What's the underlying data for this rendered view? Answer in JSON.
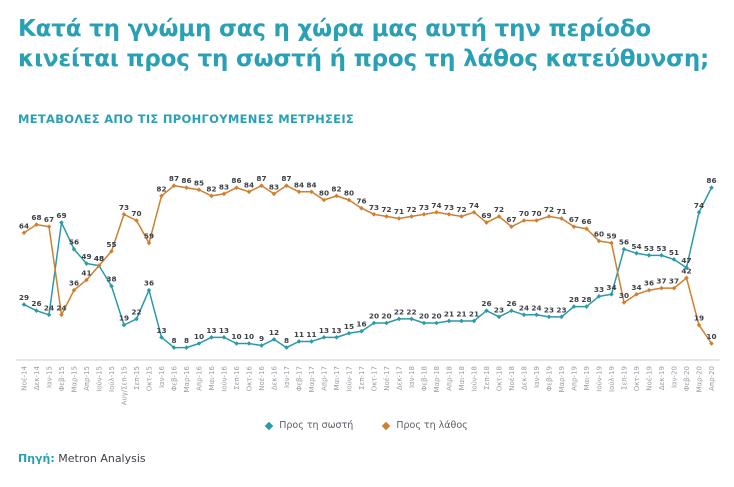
{
  "header": {
    "title_lines": [
      "Κατά τη γνώμη σας η χώρα μας αυτή την περίοδο",
      "κινείται προς τη σωστή ή προς τη λάθος κατεύθυνση;"
    ],
    "subtitle": "ΜΕΤΑΒΟΛΕΣ ΑΠΟ ΤΙΣ ΠΡΟΗΓΟΥΜΕΝΕΣ ΜΕΤΡΗΣΕΙΣ"
  },
  "chart_data": {
    "type": "line",
    "marker": "diamond",
    "grid": false,
    "legend_position": "bottom",
    "ylim": [
      0,
      100
    ],
    "data_label_color": "#3D4148",
    "axis_color": "#C9CCD1",
    "tick_color": "#9A9DA3",
    "categories": [
      "Νοέ-14",
      "Δεκ-14",
      "Ιαν-15",
      "Φεβ-15",
      "Μαρ-15",
      "Απρ-15",
      "Ιούν-15",
      "Ιούλ-15",
      "Αυγ/Σεπ-15",
      "Σεπ-15",
      "Οκτ-15",
      "Ιαν-16",
      "Φεβ-16",
      "Μαρ-16",
      "Απρ-16",
      "Μαι-16",
      "Ιούν-16",
      "Σεπ-16",
      "Οκτ-16",
      "Νοέ-16",
      "Δεκ-16",
      "Ιαν-17",
      "Φεβ-17",
      "Μαρ-17",
      "Απρ-17",
      "Μαι-17",
      "Ιούν-17",
      "Σεπ-17",
      "Οκτ-17",
      "Νοέ-17",
      "Δεκ-17",
      "Ιαν-18",
      "Φεβ-18",
      "Μαρ-18",
      "Απρ-18",
      "Μαι-18",
      "Ιούν-18",
      "Σεπ-18",
      "Οκτ-18",
      "Νοέ-18",
      "Δεκ-18",
      "Ιαν-19",
      "Φεβ-19",
      "Μαρ-19",
      "Απρ-19",
      "Μαι-19",
      "Ιούν-19",
      "Ιούλ-19",
      "Σεπ-19",
      "Οκτ-19",
      "Νοέ-19",
      "Δεκ-19",
      "Ιαν-20",
      "Φεβ-20",
      "Μαρ-20",
      "Απρ-20"
    ],
    "series": [
      {
        "name": "Προς τη σωστή",
        "color": "#2B9AA8",
        "values": [
          29,
          26,
          24,
          69,
          56,
          49,
          48,
          38,
          19,
          22,
          36,
          13,
          8,
          8,
          10,
          13,
          13,
          10,
          10,
          9,
          12,
          8,
          11,
          11,
          13,
          13,
          15,
          16,
          20,
          20,
          22,
          22,
          20,
          20,
          21,
          21,
          21,
          26,
          23,
          26,
          24,
          24,
          23,
          23,
          28,
          28,
          33,
          34,
          56,
          54,
          53,
          53,
          51,
          47,
          74,
          86
        ]
      },
      {
        "name": "Προς τη λάθος",
        "color": "#D07F2E",
        "values": [
          64,
          68,
          67,
          24,
          36,
          41,
          48,
          55,
          73,
          70,
          59,
          82,
          87,
          86,
          85,
          82,
          83,
          86,
          84,
          87,
          83,
          87,
          84,
          84,
          80,
          82,
          80,
          76,
          73,
          72,
          71,
          72,
          73,
          74,
          73,
          72,
          74,
          69,
          72,
          67,
          70,
          70,
          72,
          71,
          67,
          66,
          60,
          59,
          30,
          34,
          36,
          37,
          37,
          42,
          19,
          10
        ]
      }
    ]
  },
  "footer": {
    "source_label": "Πηγή:",
    "source_value": "Metron Analysis"
  }
}
